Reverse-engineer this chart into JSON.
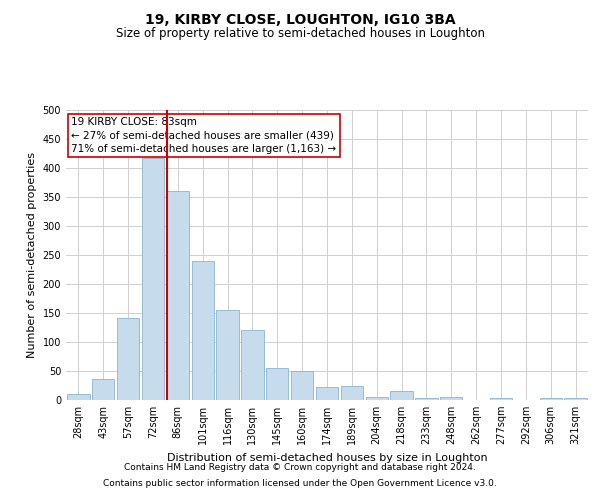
{
  "title": "19, KIRBY CLOSE, LOUGHTON, IG10 3BA",
  "subtitle": "Size of property relative to semi-detached houses in Loughton",
  "xlabel": "Distribution of semi-detached houses by size in Loughton",
  "ylabel": "Number of semi-detached properties",
  "categories": [
    "28sqm",
    "43sqm",
    "57sqm",
    "72sqm",
    "86sqm",
    "101sqm",
    "116sqm",
    "130sqm",
    "145sqm",
    "160sqm",
    "174sqm",
    "189sqm",
    "204sqm",
    "218sqm",
    "233sqm",
    "248sqm",
    "262sqm",
    "277sqm",
    "292sqm",
    "306sqm",
    "321sqm"
  ],
  "values": [
    10,
    36,
    141,
    418,
    360,
    239,
    156,
    120,
    55,
    50,
    22,
    25,
    6,
    15,
    4,
    6,
    0,
    3,
    0,
    3,
    3
  ],
  "bar_color": "#c6dcec",
  "bar_edge_color": "#8ab4d0",
  "property_label": "19 KIRBY CLOSE: 83sqm",
  "annotation_smaller": "← 27% of semi-detached houses are smaller (439)",
  "annotation_larger": "71% of semi-detached houses are larger (1,163) →",
  "vline_color": "#cc0000",
  "annotation_box_color": "#ffffff",
  "annotation_box_edge": "#cc0000",
  "ylim": [
    0,
    500
  ],
  "yticks": [
    0,
    50,
    100,
    150,
    200,
    250,
    300,
    350,
    400,
    450,
    500
  ],
  "footer1": "Contains HM Land Registry data © Crown copyright and database right 2024.",
  "footer2": "Contains public sector information licensed under the Open Government Licence v3.0.",
  "bg_color": "#ffffff",
  "grid_color": "#d0d0d0",
  "title_fontsize": 10,
  "subtitle_fontsize": 8.5,
  "axis_label_fontsize": 8,
  "tick_fontsize": 7,
  "annotation_fontsize": 7.5,
  "footer_fontsize": 6.5
}
